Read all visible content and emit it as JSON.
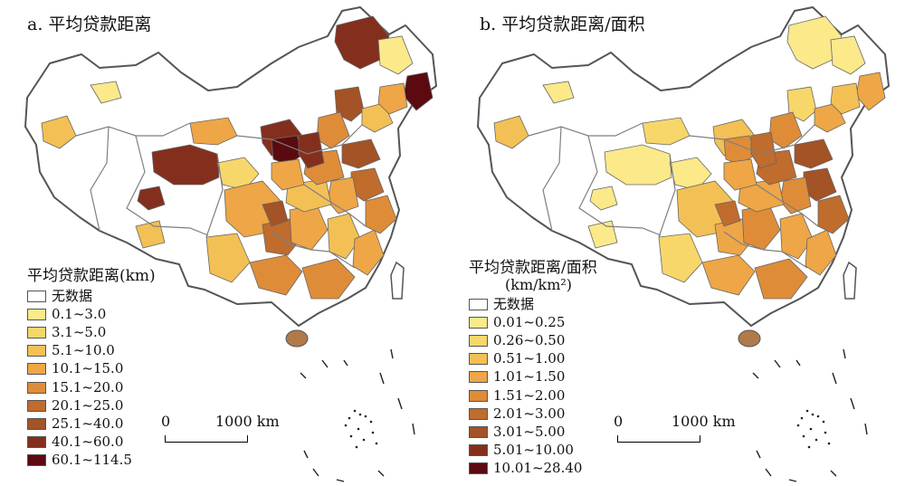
{
  "panels": [
    {
      "title": "a. 平均贷款距离",
      "legend": {
        "title": "平均贷款距离(km)",
        "unit": "",
        "items": [
          {
            "label": "无数据",
            "color": "#ffffff"
          },
          {
            "label": "0.1~3.0",
            "color": "#fbe98a"
          },
          {
            "label": "3.1~5.0",
            "color": "#f7d76a"
          },
          {
            "label": "5.1~10.0",
            "color": "#f3c055"
          },
          {
            "label": "10.1~15.0",
            "color": "#eea646"
          },
          {
            "label": "15.1~20.0",
            "color": "#df8c38"
          },
          {
            "label": "20.1~25.0",
            "color": "#c06c2d"
          },
          {
            "label": "25.1~40.0",
            "color": "#a35325"
          },
          {
            "label": "40.1~60.0",
            "color": "#842f1d"
          },
          {
            "label": "60.1~114.5",
            "color": "#5b0a10"
          }
        ]
      },
      "scalebar": {
        "zero": "0",
        "max": "1000 km"
      }
    },
    {
      "title": "b. 平均贷款距离/面积",
      "legend": {
        "title": "平均贷款距离/面积",
        "unit": "(km/km²)",
        "items": [
          {
            "label": "无数据",
            "color": "#ffffff"
          },
          {
            "label": "0.01~0.25",
            "color": "#fbe98a"
          },
          {
            "label": "0.26~0.50",
            "color": "#f7d76a"
          },
          {
            "label": "0.51~1.00",
            "color": "#f3c055"
          },
          {
            "label": "1.01~1.50",
            "color": "#eea646"
          },
          {
            "label": "1.51~2.00",
            "color": "#df8c38"
          },
          {
            "label": "2.01~3.00",
            "color": "#c06c2d"
          },
          {
            "label": "3.01~5.00",
            "color": "#a35325"
          },
          {
            "label": "5.01~10.00",
            "color": "#842f1d"
          },
          {
            "label": "10.01~28.40",
            "color": "#5b0a10"
          }
        ]
      },
      "scalebar": {
        "zero": "0",
        "max": "1000 km"
      }
    }
  ]
}
